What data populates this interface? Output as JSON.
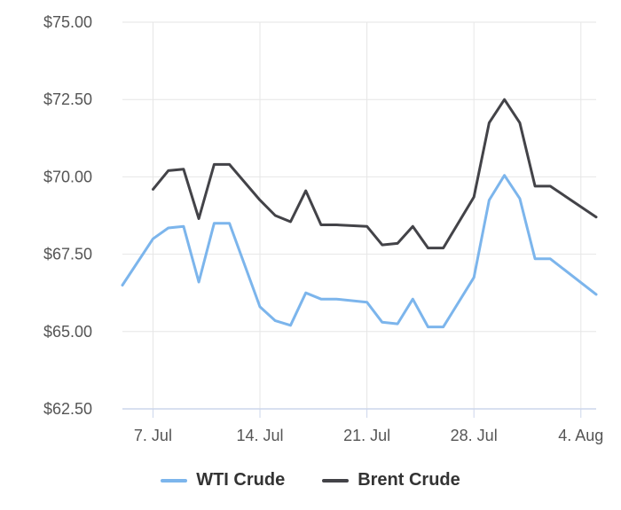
{
  "chart_data": {
    "type": "line",
    "title": "",
    "xlabel": "",
    "ylabel": "",
    "ylim": [
      62.5,
      75.0
    ],
    "y_ticks": [
      "$75.00",
      "$72.50",
      "$70.00",
      "$67.50",
      "$65.00",
      "$62.50"
    ],
    "y_tick_values": [
      75.0,
      72.5,
      70.0,
      67.5,
      65.0,
      62.5
    ],
    "x_ticks": [
      "7. Jul",
      "14. Jul",
      "21. Jul",
      "28. Jul",
      "4. Aug"
    ],
    "x_tick_dates": [
      "2025-07-07",
      "2025-07-14",
      "2025-07-21",
      "2025-07-28",
      "2025-08-04"
    ],
    "x_range": [
      "2025-07-05",
      "2025-08-05"
    ],
    "grid": true,
    "legend_position": "bottom",
    "series": [
      {
        "name": "WTI Crude",
        "color": "#7cb5ec",
        "points": [
          [
            "2025-07-05",
            66.5
          ],
          [
            "2025-07-07",
            68.0
          ],
          [
            "2025-07-08",
            68.35
          ],
          [
            "2025-07-09",
            68.4
          ],
          [
            "2025-07-10",
            66.6
          ],
          [
            "2025-07-11",
            68.5
          ],
          [
            "2025-07-12",
            68.5
          ],
          [
            "2025-07-14",
            65.8
          ],
          [
            "2025-07-15",
            65.35
          ],
          [
            "2025-07-16",
            65.2
          ],
          [
            "2025-07-17",
            66.25
          ],
          [
            "2025-07-18",
            66.05
          ],
          [
            "2025-07-19",
            66.05
          ],
          [
            "2025-07-21",
            65.95
          ],
          [
            "2025-07-22",
            65.3
          ],
          [
            "2025-07-23",
            65.25
          ],
          [
            "2025-07-24",
            66.05
          ],
          [
            "2025-07-25",
            65.15
          ],
          [
            "2025-07-26",
            65.15
          ],
          [
            "2025-07-28",
            66.75
          ],
          [
            "2025-07-29",
            69.25
          ],
          [
            "2025-07-30",
            70.05
          ],
          [
            "2025-07-31",
            69.3
          ],
          [
            "2025-08-01",
            67.35
          ],
          [
            "2025-08-02",
            67.35
          ],
          [
            "2025-08-05",
            66.2
          ]
        ]
      },
      {
        "name": "Brent Crude",
        "color": "#434348",
        "points": [
          [
            "2025-07-07",
            69.6
          ],
          [
            "2025-07-08",
            70.2
          ],
          [
            "2025-07-09",
            70.25
          ],
          [
            "2025-07-10",
            68.65
          ],
          [
            "2025-07-11",
            70.4
          ],
          [
            "2025-07-12",
            70.4
          ],
          [
            "2025-07-14",
            69.25
          ],
          [
            "2025-07-15",
            68.75
          ],
          [
            "2025-07-16",
            68.55
          ],
          [
            "2025-07-17",
            69.55
          ],
          [
            "2025-07-18",
            68.45
          ],
          [
            "2025-07-19",
            68.45
          ],
          [
            "2025-07-21",
            68.4
          ],
          [
            "2025-07-22",
            67.8
          ],
          [
            "2025-07-23",
            67.85
          ],
          [
            "2025-07-24",
            68.4
          ],
          [
            "2025-07-25",
            67.7
          ],
          [
            "2025-07-26",
            67.7
          ],
          [
            "2025-07-28",
            69.35
          ],
          [
            "2025-07-29",
            71.75
          ],
          [
            "2025-07-30",
            72.5
          ],
          [
            "2025-07-31",
            71.75
          ],
          [
            "2025-08-01",
            69.7
          ],
          [
            "2025-08-02",
            69.7
          ],
          [
            "2025-08-05",
            68.7
          ]
        ]
      }
    ]
  }
}
